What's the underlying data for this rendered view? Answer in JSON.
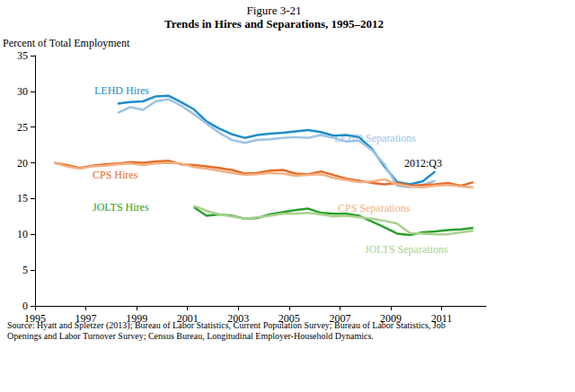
{
  "chart_data": {
    "type": "line",
    "title": "Trends in Hires and Separations, 1995–2012",
    "subtitle": "Figure 3-21",
    "ylabel": "Percent of Total Employment",
    "source": "Source: Hyatt and Spletzer (2013); Bureau of Labor Statistics, Current Population Survey; Bureau of Labor Statistics, Job Openings and Labor Turnover Survey; Census Bureau, Longitudinal Employer-Household Dynamics.",
    "annotations": [
      "2012:Q3"
    ],
    "grid": false,
    "xlim": [
      1995,
      2012.75
    ],
    "xticks": [
      1995,
      1997,
      1999,
      2001,
      2003,
      2005,
      2007,
      2009,
      2011
    ],
    "ylim": [
      0,
      35
    ],
    "yticks": [
      0,
      5,
      10,
      15,
      20,
      25,
      30,
      35
    ],
    "x": [
      1995.75,
      1996.25,
      1996.75,
      1997.25,
      1997.75,
      1998.25,
      1998.75,
      1999.25,
      1999.75,
      2000.25,
      2000.75,
      2001.25,
      2001.75,
      2002.25,
      2002.75,
      2003.25,
      2003.75,
      2004.25,
      2004.75,
      2005.25,
      2005.75,
      2006.25,
      2006.75,
      2007.25,
      2007.75,
      2008.25,
      2008.75,
      2009.25,
      2009.75,
      2010.25,
      2010.75,
      2011.25,
      2011.75,
      2012.25
    ],
    "series": [
      {
        "name": "LEHD Hires",
        "color": "#1f8dc8",
        "values": [
          null,
          null,
          null,
          null,
          null,
          28.3,
          28.5,
          28.6,
          29.3,
          29.4,
          28.5,
          27.5,
          25.8,
          24.8,
          24.0,
          23.5,
          23.9,
          24.1,
          24.2,
          24.4,
          24.6,
          24.3,
          23.8,
          23.9,
          23.6,
          22.0,
          19.5,
          17.3,
          17.0,
          17.4,
          18.8,
          null,
          null,
          null
        ]
      },
      {
        "name": "LEHD Separations",
        "color": "#9dc3e6",
        "values": [
          null,
          null,
          null,
          null,
          null,
          27.0,
          27.8,
          27.4,
          28.6,
          28.9,
          28.0,
          26.8,
          25.5,
          24.2,
          23.2,
          22.8,
          23.2,
          23.3,
          23.5,
          23.6,
          23.5,
          23.9,
          23.5,
          23.0,
          23.1,
          21.8,
          19.8,
          16.8,
          16.6,
          16.9,
          17.5,
          null,
          null,
          null
        ]
      },
      {
        "name": "CPS Hires",
        "color": "#e46c2a",
        "values": [
          20.0,
          19.7,
          19.3,
          19.6,
          19.8,
          19.9,
          20.1,
          20.0,
          20.2,
          20.3,
          19.8,
          19.7,
          19.5,
          19.3,
          19.0,
          18.5,
          18.6,
          18.9,
          19.0,
          18.5,
          18.4,
          18.8,
          18.3,
          17.8,
          17.5,
          17.2,
          17.0,
          17.2,
          16.8,
          16.9,
          17.0,
          17.2,
          16.8,
          17.3
        ]
      },
      {
        "name": "CPS Separations",
        "color": "#f4b183",
        "values": [
          20.0,
          19.5,
          19.2,
          19.5,
          19.6,
          19.8,
          19.9,
          19.7,
          19.9,
          20.0,
          19.9,
          19.4,
          19.2,
          18.9,
          18.6,
          18.3,
          18.4,
          18.6,
          18.5,
          18.2,
          18.3,
          18.4,
          17.9,
          17.6,
          17.3,
          17.4,
          17.7,
          17.0,
          16.7,
          16.6,
          16.8,
          16.9,
          16.7,
          16.6
        ]
      },
      {
        "name": "JOLTS Hires",
        "color": "#2ca02c",
        "values": [
          null,
          null,
          null,
          null,
          null,
          null,
          null,
          null,
          null,
          null,
          null,
          13.8,
          12.6,
          12.8,
          12.6,
          12.2,
          12.3,
          12.8,
          13.1,
          13.4,
          13.6,
          13.0,
          12.9,
          12.9,
          12.6,
          11.8,
          11.0,
          10.1,
          9.9,
          10.3,
          10.4,
          10.6,
          10.7,
          10.9
        ]
      },
      {
        "name": "JOLTS Separations",
        "color": "#a9d18e",
        "values": [
          null,
          null,
          null,
          null,
          null,
          null,
          null,
          null,
          null,
          null,
          null,
          14.0,
          13.3,
          12.8,
          12.5,
          12.2,
          12.4,
          12.6,
          12.9,
          12.9,
          13.0,
          12.8,
          12.5,
          12.6,
          12.4,
          12.2,
          11.9,
          11.5,
          10.2,
          10.1,
          10.0,
          10.0,
          10.3,
          10.5
        ]
      }
    ]
  }
}
